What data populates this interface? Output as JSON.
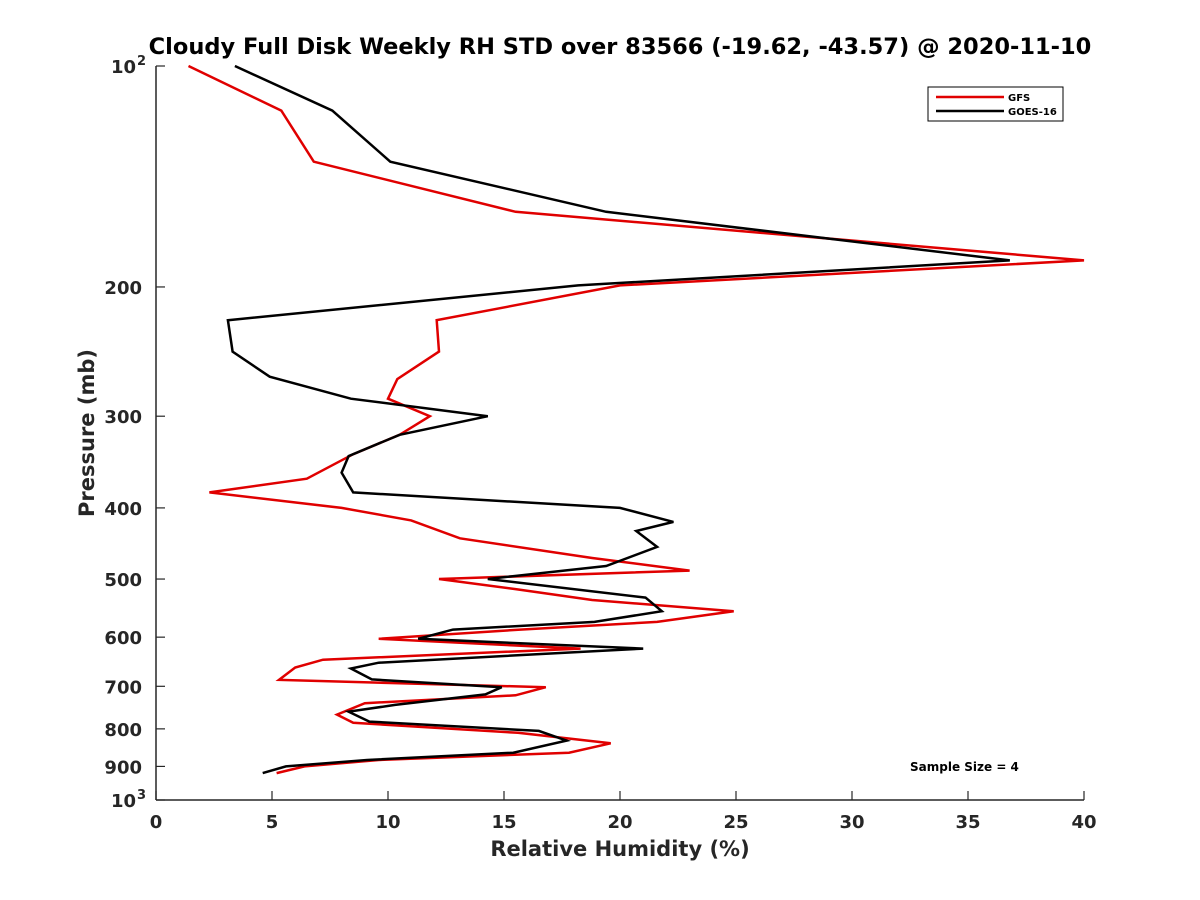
{
  "chart_data": {
    "type": "line",
    "title": "Cloudy Full Disk Weekly RH STD over 83566 (-19.62, -43.57) @ 2020-11-10",
    "xlabel": "Relative Humidity (%)",
    "ylabel": "Pressure (mb)",
    "xlim": [
      0,
      40
    ],
    "ylim": [
      100,
      1000
    ],
    "yscale": "log",
    "y_reversed": true,
    "xticks": [
      0,
      5,
      10,
      15,
      20,
      25,
      30,
      35,
      40
    ],
    "xtick_labels": [
      "0",
      "5",
      "10",
      "15",
      "20",
      "25",
      "30",
      "35",
      "40"
    ],
    "yticks": [
      {
        "value": 100,
        "label": "10",
        "sup": "2"
      },
      {
        "value": 200,
        "label": "200",
        "sup": ""
      },
      {
        "value": 300,
        "label": "300",
        "sup": ""
      },
      {
        "value": 400,
        "label": "400",
        "sup": ""
      },
      {
        "value": 500,
        "label": "500",
        "sup": ""
      },
      {
        "value": 600,
        "label": "600",
        "sup": ""
      },
      {
        "value": 700,
        "label": "700",
        "sup": ""
      },
      {
        "value": 800,
        "label": "800",
        "sup": ""
      },
      {
        "value": 900,
        "label": "900",
        "sup": ""
      },
      {
        "value": 1000,
        "label": "10",
        "sup": "3"
      }
    ],
    "grid": false,
    "legend_position": "top-right",
    "annotation": "Sample Size = 4",
    "series": [
      {
        "name": "GFS",
        "color": "#e00000",
        "points": [
          [
            1.4,
            100
          ],
          [
            5.4,
            115
          ],
          [
            6.8,
            135
          ],
          [
            15.5,
            158
          ],
          [
            40.0,
            184
          ],
          [
            20.0,
            199
          ],
          [
            12.1,
            222
          ],
          [
            12.2,
            245
          ],
          [
            10.4,
            267
          ],
          [
            10.0,
            284
          ],
          [
            11.8,
            300
          ],
          [
            10.5,
            318
          ],
          [
            8.5,
            338
          ],
          [
            6.5,
            365
          ],
          [
            2.3,
            381
          ],
          [
            8.0,
            400
          ],
          [
            11.0,
            416
          ],
          [
            13.1,
            440
          ],
          [
            18.8,
            468
          ],
          [
            23.0,
            487
          ],
          [
            12.2,
            500
          ],
          [
            15.5,
            516
          ],
          [
            18.8,
            534
          ],
          [
            24.9,
            553
          ],
          [
            21.6,
            572
          ],
          [
            15.7,
            586
          ],
          [
            9.6,
            603
          ],
          [
            18.3,
            622
          ],
          [
            7.2,
            644
          ],
          [
            6.0,
            660
          ],
          [
            5.3,
            686
          ],
          [
            16.8,
            702
          ],
          [
            15.5,
            720
          ],
          [
            9.0,
            738
          ],
          [
            7.8,
            765
          ],
          [
            8.5,
            785
          ],
          [
            15.6,
            810
          ],
          [
            19.6,
            837
          ],
          [
            17.8,
            862
          ],
          [
            9.6,
            882
          ],
          [
            6.4,
            900
          ],
          [
            5.2,
            919
          ]
        ]
      },
      {
        "name": "GOES-16",
        "color": "#000000",
        "points": [
          [
            3.4,
            100
          ],
          [
            7.6,
            115
          ],
          [
            10.1,
            135
          ],
          [
            19.4,
            158
          ],
          [
            36.8,
            184
          ],
          [
            18.2,
            199
          ],
          [
            3.1,
            222
          ],
          [
            3.3,
            245
          ],
          [
            4.9,
            265
          ],
          [
            8.4,
            284
          ],
          [
            14.3,
            300
          ],
          [
            10.5,
            318
          ],
          [
            8.3,
            340
          ],
          [
            8.0,
            358
          ],
          [
            8.5,
            381
          ],
          [
            20.0,
            400
          ],
          [
            22.3,
            418
          ],
          [
            20.7,
            430
          ],
          [
            21.6,
            452
          ],
          [
            19.4,
            480
          ],
          [
            14.3,
            500
          ],
          [
            21.1,
            530
          ],
          [
            21.8,
            553
          ],
          [
            18.9,
            572
          ],
          [
            12.8,
            586
          ],
          [
            11.3,
            603
          ],
          [
            21.0,
            622
          ],
          [
            9.6,
            650
          ],
          [
            8.4,
            662
          ],
          [
            9.3,
            685
          ],
          [
            14.9,
            702
          ],
          [
            14.2,
            718
          ],
          [
            10.3,
            742
          ],
          [
            8.3,
            758
          ],
          [
            9.2,
            782
          ],
          [
            16.5,
            805
          ],
          [
            17.7,
            830
          ],
          [
            15.4,
            862
          ],
          [
            9.1,
            882
          ],
          [
            5.6,
            900
          ],
          [
            4.6,
            919
          ]
        ]
      }
    ]
  }
}
